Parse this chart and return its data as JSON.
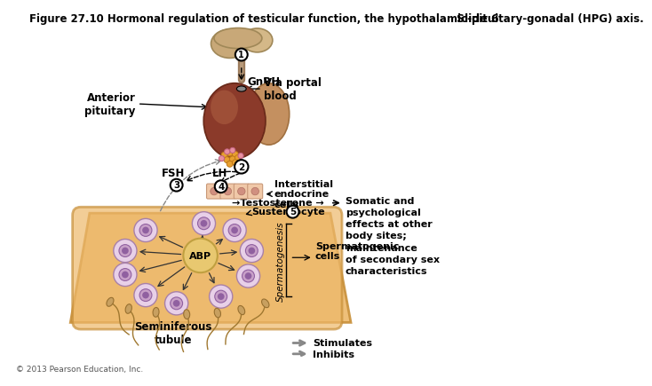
{
  "title": "Figure 27.10 Hormonal regulation of testicular function, the hypothalamic-pituitary-gonadal (HPG) axis.",
  "slide_label": "Slide 6",
  "copyright": "© 2013 Pearson Education, Inc.",
  "bg_color": "#ffffff",
  "title_fontsize": 8.5,
  "labels": {
    "gnrh": "GnRH",
    "anterior_pituitary": "Anterior\npituitary",
    "via_portal": "Via portal\nblood",
    "fsh": "FSH",
    "lh": "LH",
    "interstitial": "Interstitial\nendocrine\ncells",
    "testosterone": "→Testosterone →",
    "sustentocyte": "Sustentocyte",
    "spermatogenic": "Spermatogenic\ncells",
    "abp": "ABP",
    "spermatogenesis": "Spermatogenesis",
    "seminiferous": "Seminiferous\ntubule",
    "stimulates": "Stimulates",
    "inhibits": "Inhibits",
    "somatic": "Somatic and\npsychological\neffects at other\nbody sites;\nmaintenance\nof secondary sex\ncharacteristics"
  },
  "hypo_color": "#C8A878",
  "hypo_edge": "#A08858",
  "stalk_color": "#9B7B5B",
  "pit_dark": "#8B3A2A",
  "pit_mid": "#A04530",
  "pit_light": "#C47850",
  "pit_right_color": "#C49060",
  "ball_gold": "#E8A030",
  "ball_pink": "#E890A0",
  "tubule_fill": "#EDB86A",
  "tubule_edge": "#C8903A",
  "abp_fill": "#E8C870",
  "abp_edge": "#C0A040",
  "cell_outer": "#E8D0E8",
  "cell_mid": "#C8A0C8",
  "cell_inner": "#9060A0",
  "interstit_fill": "#F0C8A8",
  "interstit_edge": "#C89878",
  "interstit_nuc": "#D09080",
  "sperm_color": "#C09050",
  "arrow_gray": "#888888"
}
